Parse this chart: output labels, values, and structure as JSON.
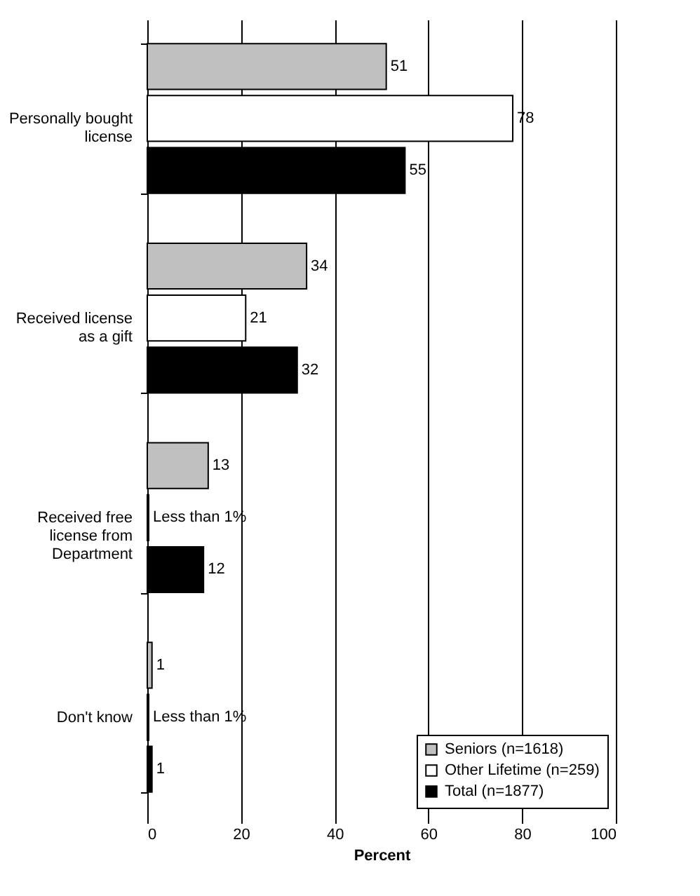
{
  "chart_data": {
    "type": "bar",
    "orientation": "horizontal",
    "xlabel": "Percent",
    "categories": [
      "Personally bought license",
      "Received license as a gift",
      "Received free license from Department",
      "Don't know"
    ],
    "series": [
      {
        "name": "Seniors (n=1618)",
        "color": "#c0c0c0",
        "values": [
          51,
          34,
          13,
          1
        ],
        "value_labels": [
          "51",
          "34",
          "13",
          "1"
        ]
      },
      {
        "name": "Other Lifetime (n=259)",
        "color": "#ffffff",
        "values": [
          78,
          21,
          0.3,
          0.3
        ],
        "value_labels": [
          "78",
          "21",
          "Less than 1%",
          "Less than 1%"
        ]
      },
      {
        "name": "Total (n=1877)",
        "color": "#000000",
        "values": [
          55,
          32,
          12,
          1
        ],
        "value_labels": [
          "55",
          "32",
          "12",
          "1"
        ]
      }
    ],
    "xlim": [
      0,
      100
    ],
    "xticks": [
      0,
      20,
      40,
      60,
      80,
      100
    ],
    "grid": "x",
    "legend": "bottom right"
  }
}
